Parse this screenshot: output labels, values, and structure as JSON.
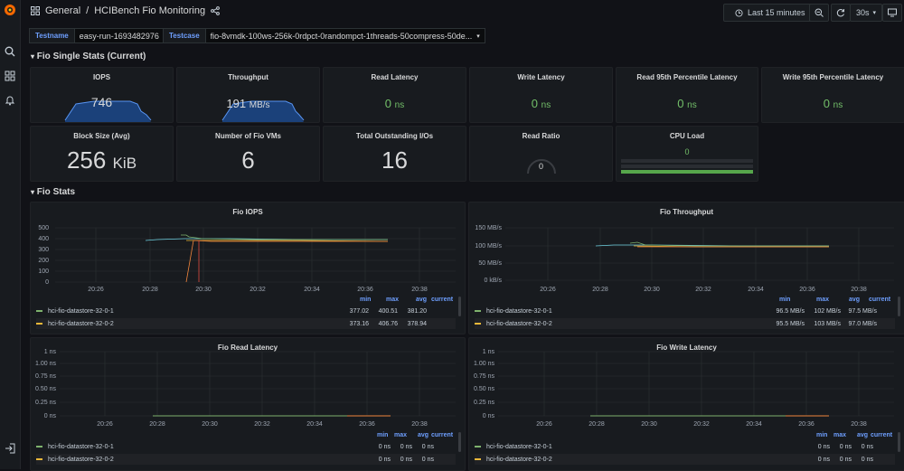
{
  "breadcrumb": {
    "folder": "General",
    "separator": "/",
    "dashboard": "HCIBench Fio Monitoring"
  },
  "toolbar": {
    "time_range": "Last 15 minutes",
    "refresh_interval": "30s"
  },
  "variables": [
    {
      "label": "Testname",
      "value": "easy-run-1693482976"
    },
    {
      "label": "Testcase",
      "value": "fio-8vmdk-100ws-256k-0rdpct-0randompct-1threads-50compress-50de..."
    }
  ],
  "rows": {
    "single_stats": "Fio Single Stats (Current)",
    "fio_stats": "Fio Stats"
  },
  "stats": [
    {
      "title": "IOPS",
      "value": "746",
      "unit": ""
    },
    {
      "title": "Throughput",
      "value": "191",
      "unit": "MB/s"
    },
    {
      "title": "Read Latency",
      "value": "0",
      "unit": "ns"
    },
    {
      "title": "Write Latency",
      "value": "0",
      "unit": "ns"
    },
    {
      "title": "Read 95th Percentile Latency",
      "value": "0",
      "unit": "ns"
    },
    {
      "title": "Write 95th Percentile Latency",
      "value": "0",
      "unit": "ns"
    },
    {
      "title": "Block Size (Avg)",
      "value": "256",
      "unit": "KiB"
    },
    {
      "title": "Number of Fio VMs",
      "value": "6",
      "unit": ""
    },
    {
      "title": "Total Outstanding I/Os",
      "value": "16",
      "unit": ""
    },
    {
      "title": "Read Ratio",
      "value": "0",
      "unit": ""
    },
    {
      "title": "CPU Load",
      "value": "0",
      "unit": ""
    }
  ],
  "legend_headers": {
    "min": "min",
    "max": "max",
    "avg": "avg",
    "current": "current"
  },
  "colors": {
    "series1": "#7eb26d",
    "series2": "#eab839",
    "series3": "#6ed0e0",
    "series4": "#ef843c",
    "accent": "#6e9fff",
    "stat_green": "#73bf69"
  },
  "chart_data": [
    {
      "type": "line",
      "title": "Fio IOPS",
      "y_ticks": [
        "500",
        "400",
        "300",
        "200",
        "100",
        "0"
      ],
      "ylim": [
        0,
        500
      ],
      "x_ticks": [
        "20:26",
        "20:28",
        "20:30",
        "20:32",
        "20:34",
        "20:36",
        "20:38"
      ],
      "series": [
        {
          "name": "hci-fio-datastore-32-0-1",
          "min": "377.02",
          "max": "400.51",
          "avg": "381.20",
          "current": ""
        },
        {
          "name": "hci-fio-datastore-32-0-2",
          "min": "373.16",
          "max": "406.76",
          "avg": "378.94",
          "current": ""
        }
      ]
    },
    {
      "type": "line",
      "title": "Fio Throughput",
      "y_ticks": [
        "150 MB/s",
        "100 MB/s",
        "50 MB/s",
        "0 kB/s"
      ],
      "ylim": [
        0,
        150
      ],
      "x_ticks": [
        "20:26",
        "20:28",
        "20:30",
        "20:32",
        "20:34",
        "20:36",
        "20:38"
      ],
      "series": [
        {
          "name": "hci-fio-datastore-32-0-1",
          "min": "96.5 MB/s",
          "max": "102 MB/s",
          "avg": "97.5 MB/s",
          "current": ""
        },
        {
          "name": "hci-fio-datastore-32-0-2",
          "min": "95.5 MB/s",
          "max": "103 MB/s",
          "avg": "97.0 MB/s",
          "current": ""
        }
      ]
    },
    {
      "type": "line",
      "title": "Fio Read Latency",
      "y_ticks": [
        "1 ns",
        "1.00 ns",
        "0.75 ns",
        "0.50 ns",
        "0.25 ns",
        "0 ns"
      ],
      "ylim": [
        0,
        1
      ],
      "x_ticks": [
        "20:26",
        "20:28",
        "20:30",
        "20:32",
        "20:34",
        "20:36",
        "20:38"
      ],
      "series": [
        {
          "name": "hci-fio-datastore-32-0-1",
          "min": "0 ns",
          "max": "0 ns",
          "avg": "0 ns",
          "current": ""
        },
        {
          "name": "hci-fio-datastore-32-0-2",
          "min": "0 ns",
          "max": "0 ns",
          "avg": "0 ns",
          "current": ""
        }
      ]
    },
    {
      "type": "line",
      "title": "Fio Write Latency",
      "y_ticks": [
        "1 ns",
        "1.00 ns",
        "0.75 ns",
        "0.50 ns",
        "0.25 ns",
        "0 ns"
      ],
      "ylim": [
        0,
        1
      ],
      "x_ticks": [
        "20:26",
        "20:28",
        "20:30",
        "20:32",
        "20:34",
        "20:36",
        "20:38"
      ],
      "series": [
        {
          "name": "hci-fio-datastore-32-0-1",
          "min": "0 ns",
          "max": "0 ns",
          "avg": "0 ns",
          "current": ""
        },
        {
          "name": "hci-fio-datastore-32-0-2",
          "min": "0 ns",
          "max": "0 ns",
          "avg": "0 ns",
          "current": ""
        }
      ]
    }
  ]
}
